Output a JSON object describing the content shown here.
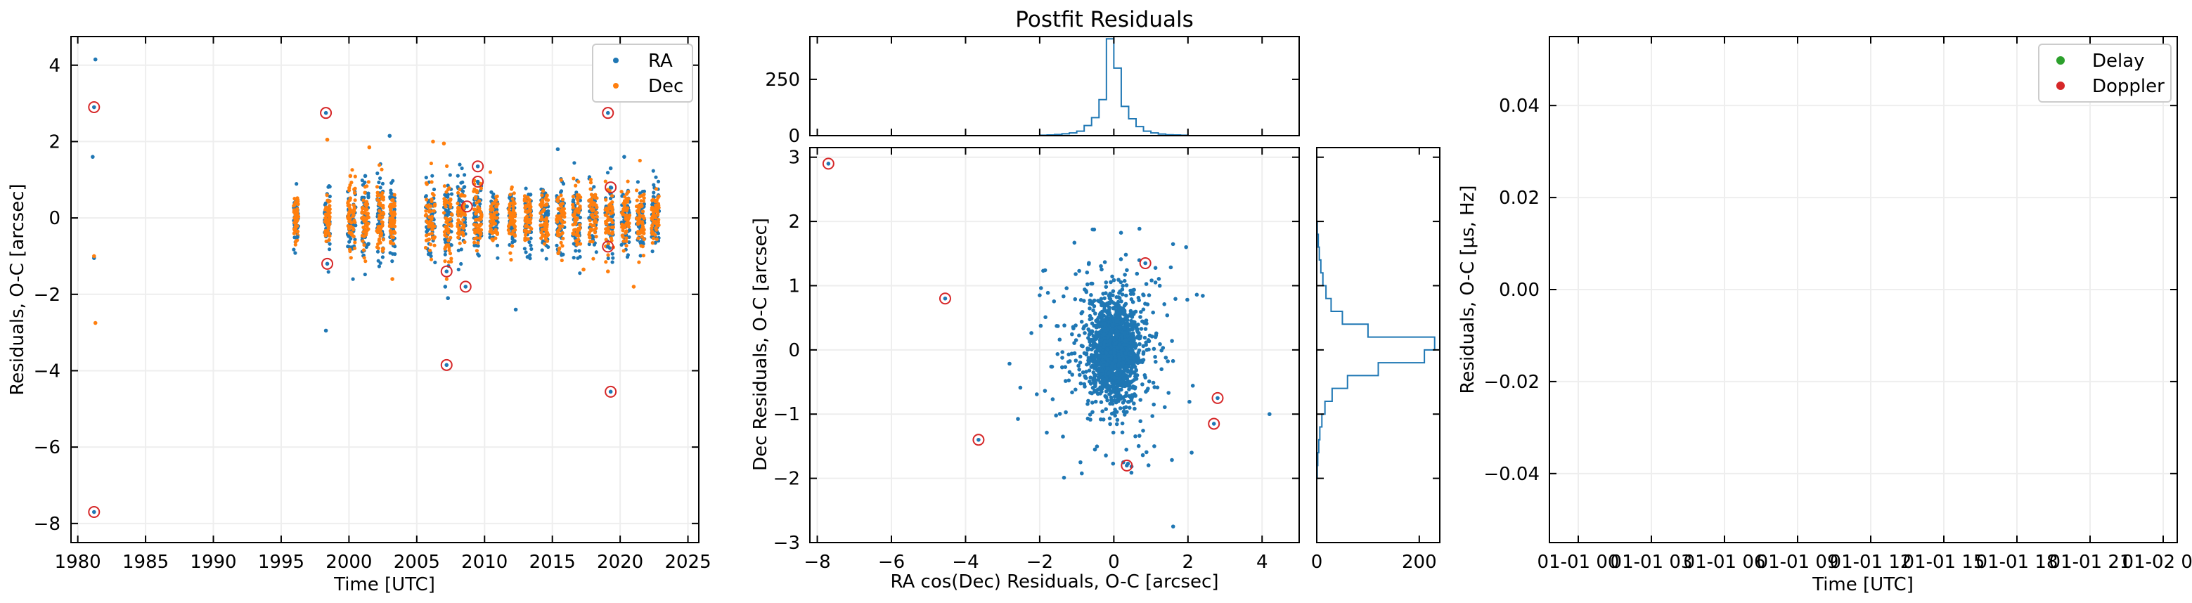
{
  "colors": {
    "blue": "#1f77b4",
    "orange": "#ff7f0e",
    "green": "#2ca02c",
    "red": "#d62728",
    "grid": "#eeeeee"
  },
  "chart_data": [
    {
      "type": "scatter",
      "xlabel": "Time [UTC]",
      "ylabel": "Residuals, O-C [arcsec]",
      "xlim": [
        1979.5,
        2025.8
      ],
      "ylim": [
        -8.5,
        4.75
      ],
      "xticks": [
        "1980",
        "1985",
        "1990",
        "1995",
        "2000",
        "2005",
        "2010",
        "2015",
        "2020",
        "2025"
      ],
      "yticks": [
        "4",
        "2",
        "0",
        "−2",
        "−4",
        "−6",
        "−8"
      ],
      "legend": {
        "position": "top-right",
        "entries": [
          "RA",
          "Dec"
        ]
      },
      "grid": true,
      "series": [
        {
          "name": "RA",
          "color": "#1f77b4",
          "points": [
            [
              1981.3,
              4.15
            ],
            [
              1981.1,
              1.6
            ],
            [
              1981.2,
              -1.05
            ],
            [
              1998.3,
              -2.95
            ],
            [
              2007.1,
              -1.8
            ],
            [
              2007.3,
              -2.1
            ],
            [
              2012.3,
              -2.4
            ],
            [
              2003.0,
              2.15
            ],
            [
              2015.4,
              1.8
            ],
            [
              2001.2,
              1.1
            ],
            [
              1996.2,
              -0.5
            ],
            [
              2020.3,
              1.6
            ],
            [
              2019.3,
              1.3
            ]
          ]
        },
        {
          "name": "Dec",
          "color": "#ff7f0e",
          "points": [
            [
              1981.2,
              -1.0
            ],
            [
              1981.3,
              -2.75
            ],
            [
              1998.4,
              2.05
            ],
            [
              2001.5,
              1.85
            ],
            [
              2006.2,
              2.0
            ],
            [
              2007.0,
              1.95
            ],
            [
              2021.0,
              -1.8
            ],
            [
              2003.2,
              -1.6
            ],
            [
              2000.1,
              1.1
            ],
            [
              2019.1,
              -1.4
            ],
            [
              2017.3,
              -1.35
            ]
          ]
        }
      ],
      "clusters": [
        {
          "series": "RA",
          "year": 1996.1,
          "spread": 0.35,
          "sd": 0.3
        },
        {
          "series": "Dec",
          "year": 1996.1,
          "spread": 0.35,
          "sd": 0.3
        },
        {
          "series": "RA",
          "year": 1998.4,
          "spread": 0.4,
          "sd": 0.35
        },
        {
          "series": "Dec",
          "year": 1998.4,
          "spread": 0.4,
          "sd": 0.3
        },
        {
          "series": "RA",
          "year": 2000.2,
          "spread": 0.6,
          "sd": 0.5
        },
        {
          "series": "Dec",
          "year": 2000.2,
          "spread": 0.6,
          "sd": 0.45
        },
        {
          "series": "RA",
          "year": 2001.2,
          "spread": 0.5,
          "sd": 0.55
        },
        {
          "series": "Dec",
          "year": 2001.2,
          "spread": 0.5,
          "sd": 0.45
        },
        {
          "series": "RA",
          "year": 2002.3,
          "spread": 0.5,
          "sd": 0.6
        },
        {
          "series": "Dec",
          "year": 2002.3,
          "spread": 0.5,
          "sd": 0.5
        },
        {
          "series": "RA",
          "year": 2003.2,
          "spread": 0.4,
          "sd": 0.45
        },
        {
          "series": "Dec",
          "year": 2003.2,
          "spread": 0.4,
          "sd": 0.4
        },
        {
          "series": "RA",
          "year": 2006.0,
          "spread": 0.7,
          "sd": 0.55
        },
        {
          "series": "Dec",
          "year": 2006.0,
          "spread": 0.7,
          "sd": 0.45
        },
        {
          "series": "RA",
          "year": 2007.3,
          "spread": 0.6,
          "sd": 0.55
        },
        {
          "series": "Dec",
          "year": 2007.3,
          "spread": 0.6,
          "sd": 0.45
        },
        {
          "series": "RA",
          "year": 2008.3,
          "spread": 0.6,
          "sd": 0.45
        },
        {
          "series": "Dec",
          "year": 2008.3,
          "spread": 0.6,
          "sd": 0.4
        },
        {
          "series": "RA",
          "year": 2009.5,
          "spread": 0.6,
          "sd": 0.45
        },
        {
          "series": "Dec",
          "year": 2009.5,
          "spread": 0.6,
          "sd": 0.4
        },
        {
          "series": "RA",
          "year": 2010.7,
          "spread": 0.6,
          "sd": 0.4
        },
        {
          "series": "Dec",
          "year": 2010.7,
          "spread": 0.6,
          "sd": 0.35
        },
        {
          "series": "RA",
          "year": 2012.0,
          "spread": 0.5,
          "sd": 0.4
        },
        {
          "series": "Dec",
          "year": 2012.0,
          "spread": 0.5,
          "sd": 0.35
        },
        {
          "series": "RA",
          "year": 2013.2,
          "spread": 0.5,
          "sd": 0.45
        },
        {
          "series": "Dec",
          "year": 2013.2,
          "spread": 0.5,
          "sd": 0.35
        },
        {
          "series": "RA",
          "year": 2014.4,
          "spread": 0.6,
          "sd": 0.4
        },
        {
          "series": "Dec",
          "year": 2014.4,
          "spread": 0.6,
          "sd": 0.35
        },
        {
          "series": "RA",
          "year": 2015.6,
          "spread": 0.6,
          "sd": 0.45
        },
        {
          "series": "Dec",
          "year": 2015.6,
          "spread": 0.6,
          "sd": 0.4
        },
        {
          "series": "RA",
          "year": 2016.8,
          "spread": 0.6,
          "sd": 0.45
        },
        {
          "series": "Dec",
          "year": 2016.8,
          "spread": 0.6,
          "sd": 0.4
        },
        {
          "series": "RA",
          "year": 2018.0,
          "spread": 0.6,
          "sd": 0.45
        },
        {
          "series": "Dec",
          "year": 2018.0,
          "spread": 0.6,
          "sd": 0.4
        },
        {
          "series": "RA",
          "year": 2019.2,
          "spread": 0.6,
          "sd": 0.45
        },
        {
          "series": "Dec",
          "year": 2019.2,
          "spread": 0.6,
          "sd": 0.4
        },
        {
          "series": "RA",
          "year": 2020.4,
          "spread": 0.6,
          "sd": 0.45
        },
        {
          "series": "Dec",
          "year": 2020.4,
          "spread": 0.6,
          "sd": 0.4
        },
        {
          "series": "RA",
          "year": 2021.5,
          "spread": 0.6,
          "sd": 0.45
        },
        {
          "series": "Dec",
          "year": 2021.5,
          "spread": 0.6,
          "sd": 0.4
        },
        {
          "series": "RA",
          "year": 2022.6,
          "spread": 0.6,
          "sd": 0.45
        },
        {
          "series": "Dec",
          "year": 2022.6,
          "spread": 0.6,
          "sd": 0.4
        }
      ],
      "outliers": [
        [
          1981.2,
          2.9
        ],
        [
          1981.2,
          -7.7
        ],
        [
          1998.3,
          2.75
        ],
        [
          1998.4,
          -1.2
        ],
        [
          2007.2,
          -1.4
        ],
        [
          2007.2,
          -3.85
        ],
        [
          2008.7,
          0.3
        ],
        [
          2008.6,
          -1.8
        ],
        [
          2009.5,
          1.35
        ],
        [
          2009.5,
          0.95
        ],
        [
          2019.1,
          2.75
        ],
        [
          2019.3,
          0.8
        ],
        [
          2019.1,
          -0.75
        ],
        [
          2019.3,
          -4.55
        ]
      ]
    },
    {
      "type": "scatter",
      "title": "Postfit Residuals",
      "xlabel": "RA cos(Dec) Residuals, O-C [arcsec]",
      "ylabel": "Dec Residuals, O-C [arcsec]",
      "xlim": [
        -8.2,
        5.0
      ],
      "ylim": [
        -3.0,
        3.15
      ],
      "xticks": [
        "−8",
        "−6",
        "−4",
        "−2",
        "0",
        "2",
        "4"
      ],
      "yticks": [
        "3",
        "2",
        "1",
        "0",
        "−1",
        "−2",
        "−3"
      ],
      "grid": true,
      "series": [
        {
          "color": "#1f77b4",
          "core": {
            "n": 1400,
            "sd": 0.3
          },
          "halo": {
            "n": 400,
            "sd": 0.8
          }
        }
      ],
      "outliers": [
        [
          -7.7,
          2.9
        ],
        [
          -4.55,
          0.8
        ],
        [
          -3.65,
          -1.4
        ],
        [
          0.85,
          1.35
        ],
        [
          2.8,
          -0.75
        ],
        [
          2.7,
          -1.15
        ],
        [
          0.35,
          -1.8
        ]
      ],
      "extra_points": [
        [
          4.2,
          -1.0
        ],
        [
          1.6,
          -2.75
        ],
        [
          1.95,
          1.6
        ],
        [
          -2.0,
          0.85
        ],
        [
          2.1,
          -1.6
        ],
        [
          -0.9,
          -1.75
        ]
      ]
    },
    {
      "type": "histogram",
      "orientation": "vertical",
      "ylim": [
        0,
        440
      ],
      "yticks": [
        "0",
        "250"
      ],
      "bin_centers": [
        -1.9,
        -1.7,
        -1.5,
        -1.3,
        -1.1,
        -0.9,
        -0.7,
        -0.5,
        -0.3,
        -0.1,
        0.1,
        0.3,
        0.5,
        0.7,
        0.9,
        1.1,
        1.3,
        1.5,
        1.7,
        1.9
      ],
      "values": [
        2,
        3,
        5,
        8,
        12,
        20,
        45,
        80,
        160,
        430,
        300,
        130,
        75,
        40,
        20,
        12,
        7,
        4,
        3,
        2
      ]
    },
    {
      "type": "histogram",
      "orientation": "horizontal",
      "xlim": [
        0,
        240
      ],
      "xticks": [
        "0",
        "200"
      ],
      "bin_centers": [
        1.9,
        1.7,
        1.5,
        1.3,
        1.1,
        0.9,
        0.7,
        0.5,
        0.3,
        0.1,
        -0.1,
        -0.3,
        -0.5,
        -0.7,
        -0.9,
        -1.1,
        -1.3,
        -1.5,
        -1.7,
        -1.9
      ],
      "values": [
        1,
        3,
        5,
        8,
        12,
        18,
        28,
        50,
        100,
        230,
        210,
        120,
        60,
        30,
        16,
        10,
        6,
        4,
        2,
        1
      ]
    },
    {
      "type": "scatter",
      "xlabel": "Time [UTC]",
      "ylabel": "Residuals, O-C [μs, Hz]",
      "ylim": [
        -0.055,
        0.055
      ],
      "xticks": [
        "01-01 00",
        "01-01 03",
        "01-01 06",
        "01-01 09",
        "01-01 12",
        "01-01 15",
        "01-01 18",
        "01-01 21",
        "01-02 00"
      ],
      "yticks": [
        "0.04",
        "0.02",
        "0.00",
        "−0.02",
        "−0.04"
      ],
      "legend": {
        "position": "top-right",
        "entries": [
          "Delay",
          "Doppler"
        ]
      },
      "grid": true,
      "series": [
        {
          "name": "Delay",
          "color": "#2ca02c",
          "values": []
        },
        {
          "name": "Doppler",
          "color": "#d62728",
          "values": []
        }
      ]
    }
  ]
}
